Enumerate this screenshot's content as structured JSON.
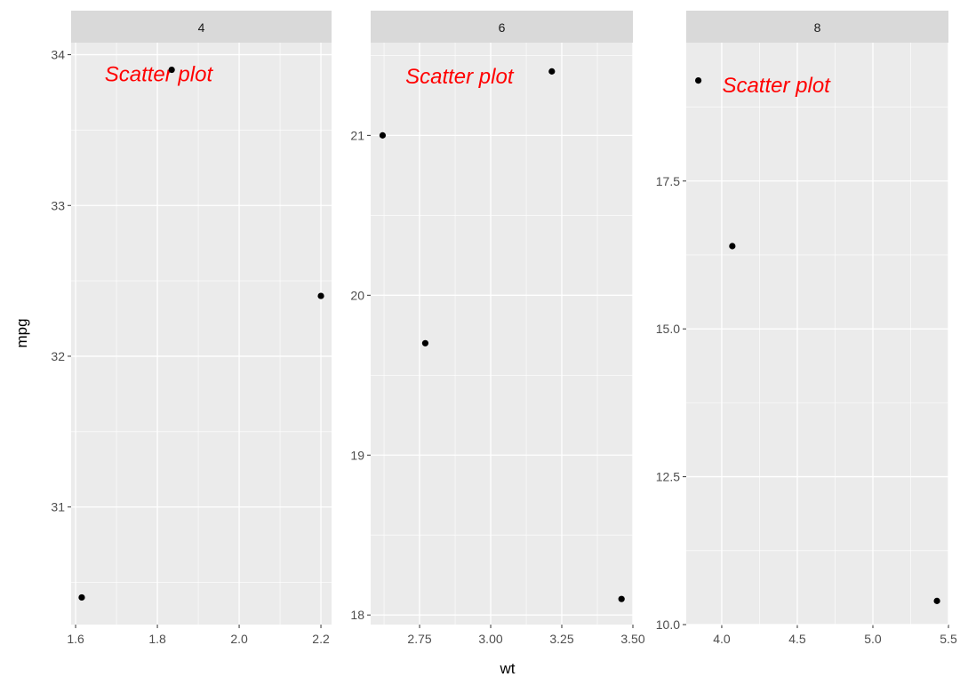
{
  "chart_data": {
    "type": "scatter",
    "xlabel": "wt",
    "ylabel": "mpg",
    "facet_by": "cyl",
    "grid": true,
    "colors": {
      "panel_bg": "#ebebeb",
      "strip_bg": "#d9d9d9",
      "grid": "#ffffff",
      "point": "#000000",
      "annotation": "#ff0000"
    },
    "panels": [
      {
        "strip": "4",
        "xlim": [
          1.589,
          2.226
        ],
        "ylim": [
          30.22,
          34.08
        ],
        "xticks": [
          1.6,
          1.8,
          2.0,
          2.2
        ],
        "xtick_labels": [
          "1.6",
          "1.8",
          "2.0",
          "2.2"
        ],
        "yticks": [
          31,
          32,
          33,
          34
        ],
        "ytick_labels": [
          "31",
          "32",
          "33",
          "34"
        ],
        "annotation": {
          "text": "Scatter plot",
          "x": 1.803,
          "y": 33.87
        },
        "points": [
          {
            "x": 1.615,
            "y": 30.4
          },
          {
            "x": 1.835,
            "y": 33.9
          },
          {
            "x": 2.2,
            "y": 32.4
          }
        ]
      },
      {
        "strip": "6",
        "xlim": [
          2.578,
          3.5
        ],
        "ylim": [
          17.94,
          21.58
        ],
        "xticks": [
          2.75,
          3.0,
          3.25,
          3.5
        ],
        "xtick_labels": [
          "2.75",
          "3.00",
          "3.25",
          "3.50"
        ],
        "yticks": [
          18,
          19,
          20,
          21
        ],
        "ytick_labels": [
          "18",
          "19",
          "20",
          "21"
        ],
        "annotation": {
          "text": "Scatter plot",
          "x": 2.89,
          "y": 21.37
        },
        "points": [
          {
            "x": 2.62,
            "y": 21.0
          },
          {
            "x": 2.77,
            "y": 19.7
          },
          {
            "x": 3.215,
            "y": 21.4
          },
          {
            "x": 3.46,
            "y": 18.1
          }
        ]
      },
      {
        "strip": "8",
        "xlim": [
          3.765,
          5.5
        ],
        "ylim": [
          10.0,
          19.84
        ],
        "xticks": [
          4.0,
          4.5,
          5.0,
          5.5
        ],
        "xtick_labels": [
          "4.0",
          "4.5",
          "5.0",
          "5.5"
        ],
        "yticks": [
          10.0,
          12.5,
          15.0,
          17.5
        ],
        "ytick_labels": [
          "10.0",
          "12.5",
          "15.0",
          "17.5"
        ],
        "annotation": {
          "text": "Scatter plot",
          "x": 4.36,
          "y": 19.12
        },
        "points": [
          {
            "x": 3.845,
            "y": 19.2
          },
          {
            "x": 4.07,
            "y": 16.4
          },
          {
            "x": 5.424,
            "y": 10.4
          }
        ]
      }
    ]
  }
}
